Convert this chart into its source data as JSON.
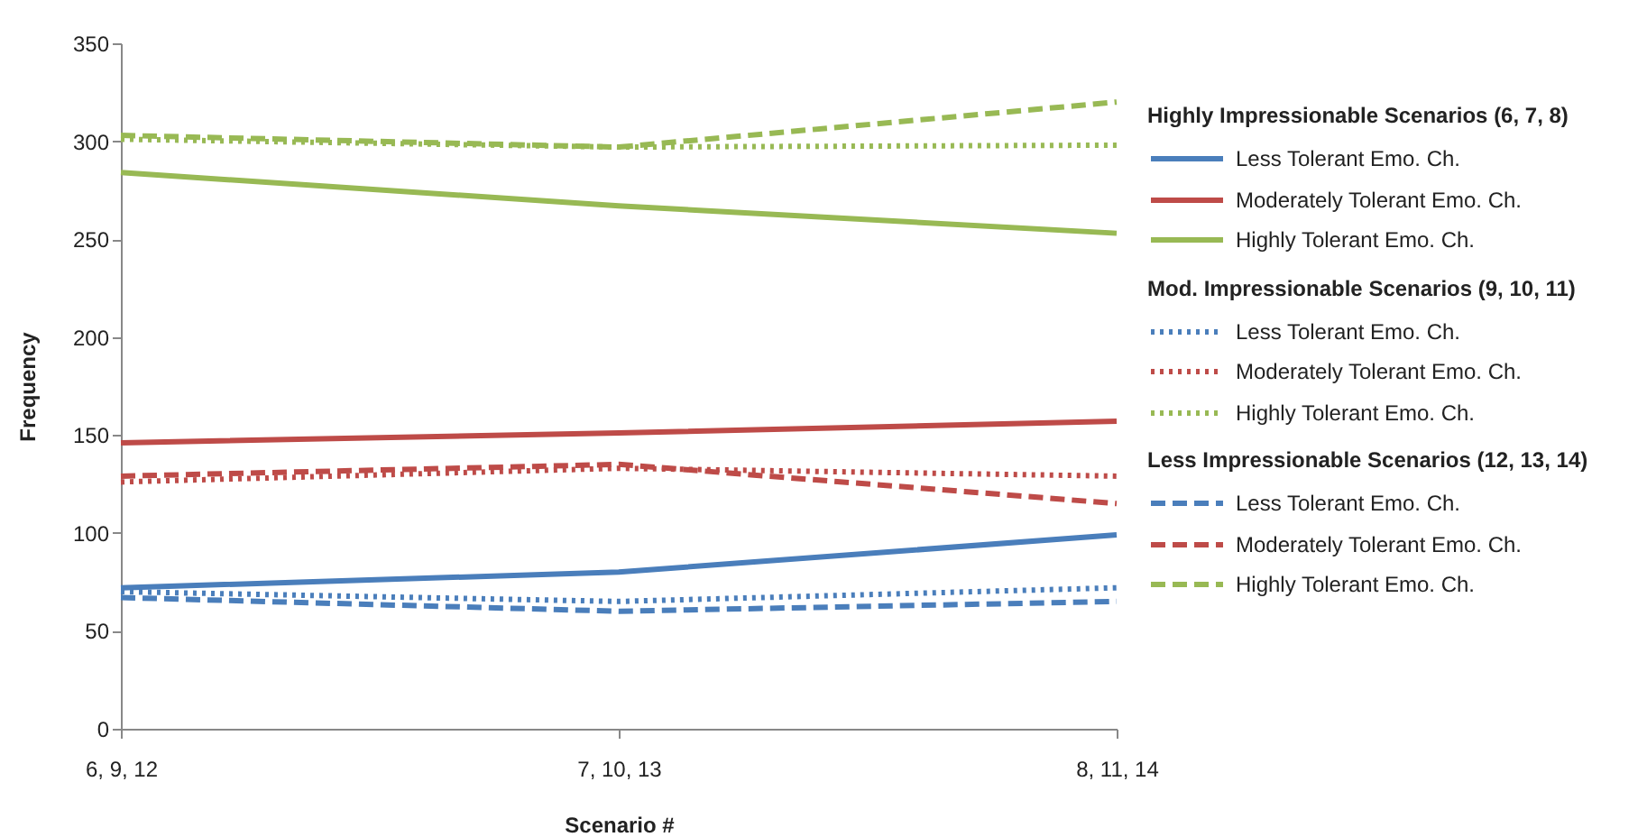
{
  "chart_data": {
    "type": "line",
    "xlabel": "Scenario #",
    "ylabel": "Frequency",
    "categories": [
      "6, 9, 12",
      "7, 10, 13",
      "8, 11, 14"
    ],
    "ylim": [
      0,
      350
    ],
    "yticks": [
      0,
      50,
      100,
      150,
      200,
      250,
      300,
      350
    ],
    "grid": false,
    "legend": "right",
    "marker": "none",
    "annotations": [
      "Highly Impressionable Scenarios (6, 7, 8)",
      "Mod. Impressionable Scenarios (9, 10, 11)",
      "Less Impressionable Scenarios (12, 13, 14)"
    ],
    "series": [
      {
        "name": "Less Tolerant Emo.  Ch.",
        "color": "#4a7ebb",
        "line_style": "solid",
        "values": [
          72,
          80,
          99
        ]
      },
      {
        "name": "Moderately Tolerant  Emo.  Ch.",
        "color": "#be4b48",
        "line_style": "solid",
        "values": [
          146,
          151,
          157
        ]
      },
      {
        "name": "Highly Tolerant Emo.  Ch.",
        "color": "#98b954",
        "line_style": "solid",
        "values": [
          284,
          267,
          253
        ]
      },
      {
        "name": "Less Tolerant Emo.  Ch.",
        "color": "#4a7ebb",
        "line_style": "dotted",
        "values": [
          70,
          65,
          72
        ]
      },
      {
        "name": "Moderately Tolerant  Emo.  Ch.",
        "color": "#be4b48",
        "line_style": "dotted",
        "values": [
          126,
          133,
          129
        ]
      },
      {
        "name": "Highly Tolerant Emo.  Ch.",
        "color": "#98b954",
        "line_style": "dotted",
        "values": [
          301,
          297,
          298
        ]
      },
      {
        "name": "Less Tolerant Emo.  Ch.",
        "color": "#4a7ebb",
        "line_style": "dashed",
        "values": [
          67,
          60,
          65
        ]
      },
      {
        "name": "Moderately Tolerant  Emo.  Ch.",
        "color": "#be4b48",
        "line_style": "dashed",
        "values": [
          129,
          135,
          115
        ]
      },
      {
        "name": "Highly Tolerant Emo.  Ch.",
        "color": "#98b954",
        "line_style": "dashed",
        "values": [
          303,
          297,
          320
        ]
      }
    ]
  }
}
